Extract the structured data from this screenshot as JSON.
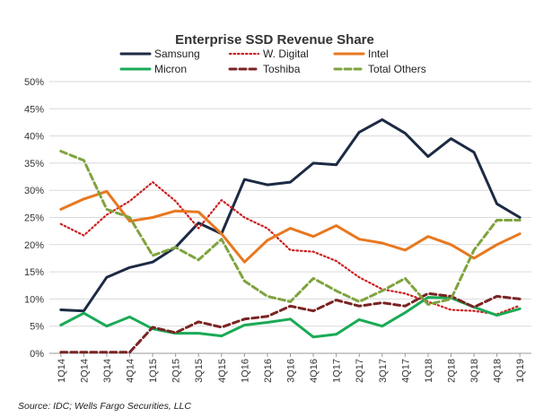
{
  "chart_data": {
    "type": "line",
    "title": "Enterprise SSD Revenue Share",
    "source": "Source: IDC; Wells Fargo Securities, LLC",
    "xlabel": "",
    "ylabel": "",
    "ylim": [
      0,
      50
    ],
    "yticks": [
      0,
      5,
      10,
      15,
      20,
      25,
      30,
      35,
      40,
      45,
      50
    ],
    "ytick_labels": [
      "0%",
      "5%",
      "10%",
      "15%",
      "20%",
      "25%",
      "30%",
      "35%",
      "40%",
      "45%",
      "50%"
    ],
    "grid": true,
    "legend_position": "top",
    "categories": [
      "1Q14",
      "2Q14",
      "3Q14",
      "4Q14",
      "1Q15",
      "2Q15",
      "3Q15",
      "4Q15",
      "1Q16",
      "2Q16",
      "3Q16",
      "4Q16",
      "1Q17",
      "2Q17",
      "3Q17",
      "4Q17",
      "1Q18",
      "2Q18",
      "3Q18",
      "4Q18",
      "1Q19"
    ],
    "series": [
      {
        "name": "Samsung",
        "color": "#1c2a44",
        "style": "solid",
        "values": [
          8.0,
          7.8,
          14.0,
          15.8,
          16.8,
          19.5,
          24.0,
          22.0,
          32.0,
          31.0,
          31.5,
          35.0,
          34.7,
          40.7,
          43.0,
          40.5,
          36.2,
          39.5,
          37.0,
          27.5,
          25.0
        ]
      },
      {
        "name": "W. Digital",
        "color": "#cc1f1f",
        "style": "dotted",
        "values": [
          23.8,
          21.7,
          25.5,
          28.0,
          31.5,
          28.0,
          23.0,
          28.2,
          25.0,
          23.0,
          19.0,
          18.7,
          17.0,
          14.0,
          11.8,
          11.0,
          9.5,
          8.0,
          7.8,
          7.2,
          8.8
        ]
      },
      {
        "name": "Intel",
        "color": "#e8781f",
        "style": "solid",
        "values": [
          26.5,
          28.4,
          29.8,
          24.3,
          25.0,
          26.2,
          26.0,
          22.0,
          16.8,
          20.8,
          23.0,
          21.5,
          23.5,
          21.0,
          20.3,
          19.0,
          21.5,
          20.0,
          17.5,
          20.0,
          22.0
        ]
      },
      {
        "name": "Micron",
        "color": "#1aaa55",
        "style": "solid",
        "values": [
          5.2,
          7.4,
          5.0,
          6.7,
          4.5,
          3.7,
          3.7,
          3.2,
          5.2,
          5.7,
          6.3,
          3.0,
          3.5,
          6.2,
          5.0,
          7.5,
          10.3,
          10.2,
          8.5,
          7.0,
          8.2
        ]
      },
      {
        "name": "Toshiba",
        "color": "#7a2323",
        "style": "dashed",
        "values": [
          0.2,
          0.2,
          0.2,
          0.2,
          4.8,
          3.8,
          5.8,
          4.8,
          6.3,
          6.8,
          8.7,
          7.8,
          9.8,
          8.7,
          9.3,
          8.7,
          11.0,
          10.5,
          8.5,
          10.5,
          10.0
        ]
      },
      {
        "name": "Total Others",
        "color": "#7fa33f",
        "style": "dashed",
        "values": [
          37.2,
          35.5,
          26.5,
          25.0,
          18.0,
          19.5,
          17.2,
          21.0,
          13.3,
          10.5,
          9.5,
          13.8,
          11.5,
          9.5,
          11.5,
          13.8,
          9.0,
          10.0,
          19.0,
          24.5,
          24.5
        ]
      }
    ]
  }
}
